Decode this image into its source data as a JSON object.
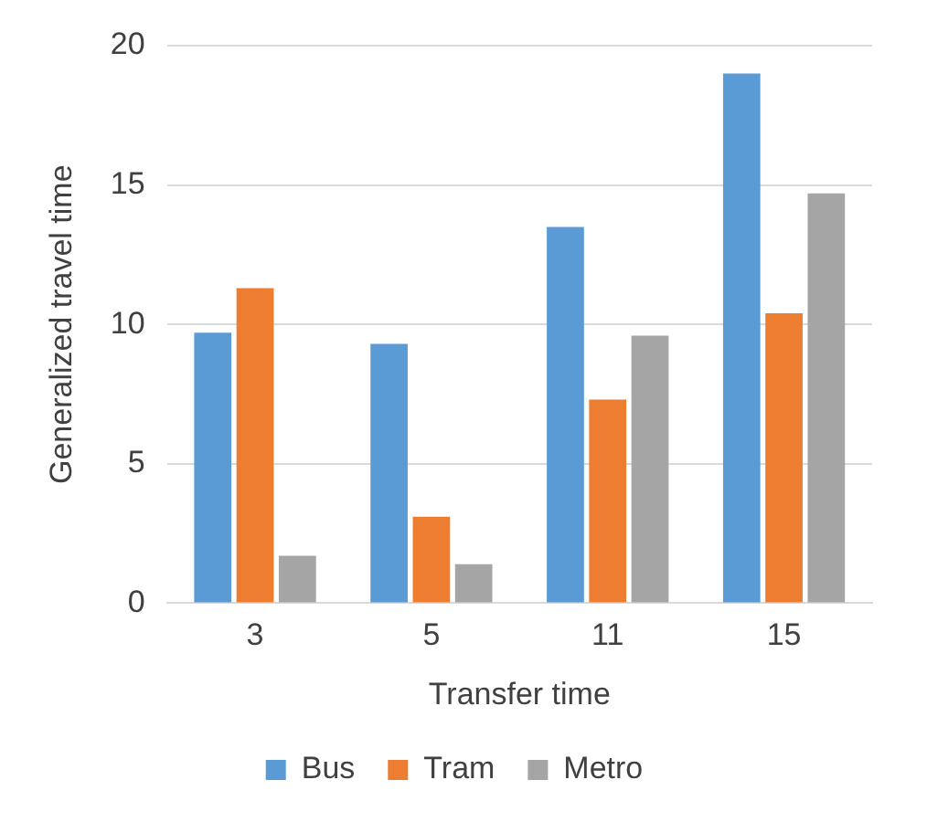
{
  "chart_data": {
    "type": "bar",
    "xlabel": "Transfer time",
    "ylabel": "Generalized travel time",
    "categories": [
      "3",
      "5",
      "11",
      "15"
    ],
    "series": [
      {
        "name": "Bus",
        "color": "#5b9bd5",
        "values": [
          9.7,
          9.3,
          13.5,
          19
        ]
      },
      {
        "name": "Tram",
        "color": "#ed7d31",
        "values": [
          11.3,
          3.1,
          7.3,
          10.4
        ]
      },
      {
        "name": "Metro",
        "color": "#a5a5a5",
        "values": [
          1.7,
          1.4,
          9.6,
          14.7
        ]
      }
    ],
    "ylim": [
      0,
      20
    ],
    "yticks": [
      0,
      5,
      10,
      15,
      20
    ],
    "grid": "y",
    "legend": "bottom"
  }
}
